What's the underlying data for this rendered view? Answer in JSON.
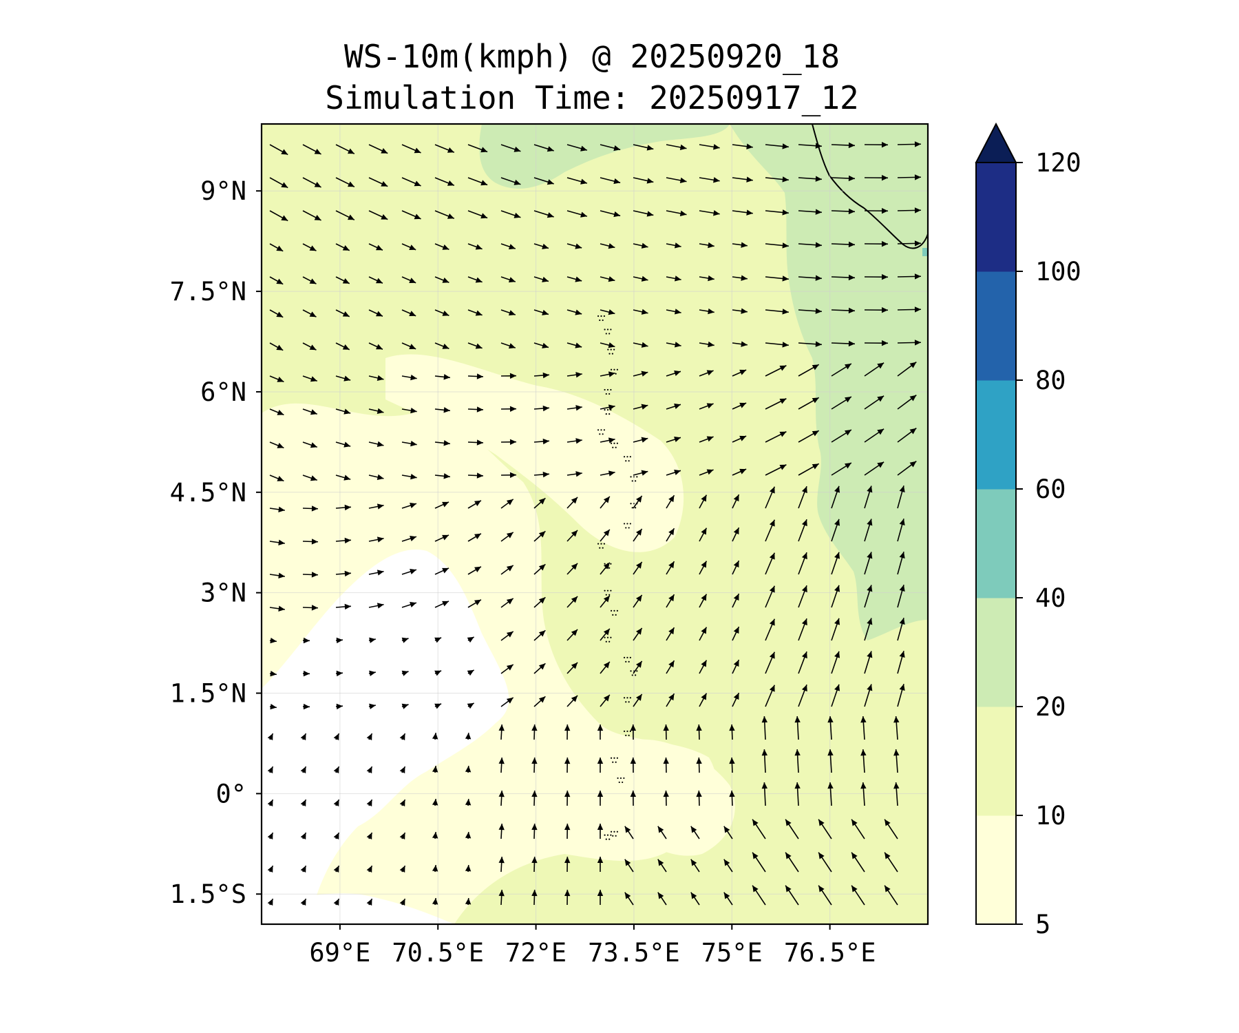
{
  "title": {
    "line1": "WS-10m(kmph) @ 20250920_18",
    "line2": "Simulation Time: 20250917_12"
  },
  "map": {
    "lon_range": [
      67.8,
      78.0
    ],
    "lat_range": [
      -1.95,
      10.0
    ],
    "lon_ticks": [
      {
        "value": 69,
        "label": "69°E"
      },
      {
        "value": 70.5,
        "label": "70.5°E"
      },
      {
        "value": 72,
        "label": "72°E"
      },
      {
        "value": 73.5,
        "label": "73.5°E"
      },
      {
        "value": 75,
        "label": "75°E"
      },
      {
        "value": 76.5,
        "label": "76.5°E"
      }
    ],
    "lat_ticks": [
      {
        "value": 9,
        "label": "9°N"
      },
      {
        "value": 7.5,
        "label": "7.5°N"
      },
      {
        "value": 6,
        "label": "6°N"
      },
      {
        "value": 4.5,
        "label": "4.5°N"
      },
      {
        "value": 3,
        "label": "3°N"
      },
      {
        "value": 1.5,
        "label": "1.5°N"
      },
      {
        "value": 0,
        "label": "0°"
      },
      {
        "value": -1.5,
        "label": "1.5°S"
      }
    ],
    "gridlines": true,
    "variable": "10 m wind speed",
    "vector_field": "wind arrows, NW flow in north turning W, SW/S flow in south-east, SE flow in far south-east"
  },
  "colorbar": {
    "levels": [
      5,
      10,
      20,
      40,
      60,
      80,
      100,
      120
    ],
    "labels": [
      "5",
      "10",
      "20",
      "40",
      "60",
      "80",
      "100",
      "120"
    ],
    "colors": [
      "#ffffd9",
      "#eef8b6",
      "#cdebb4",
      "#7ecbbb",
      "#2fa2c5",
      "#2363ab",
      "#1d2d85"
    ],
    "extend_color": "#0b1e56",
    "extend": "max"
  }
}
